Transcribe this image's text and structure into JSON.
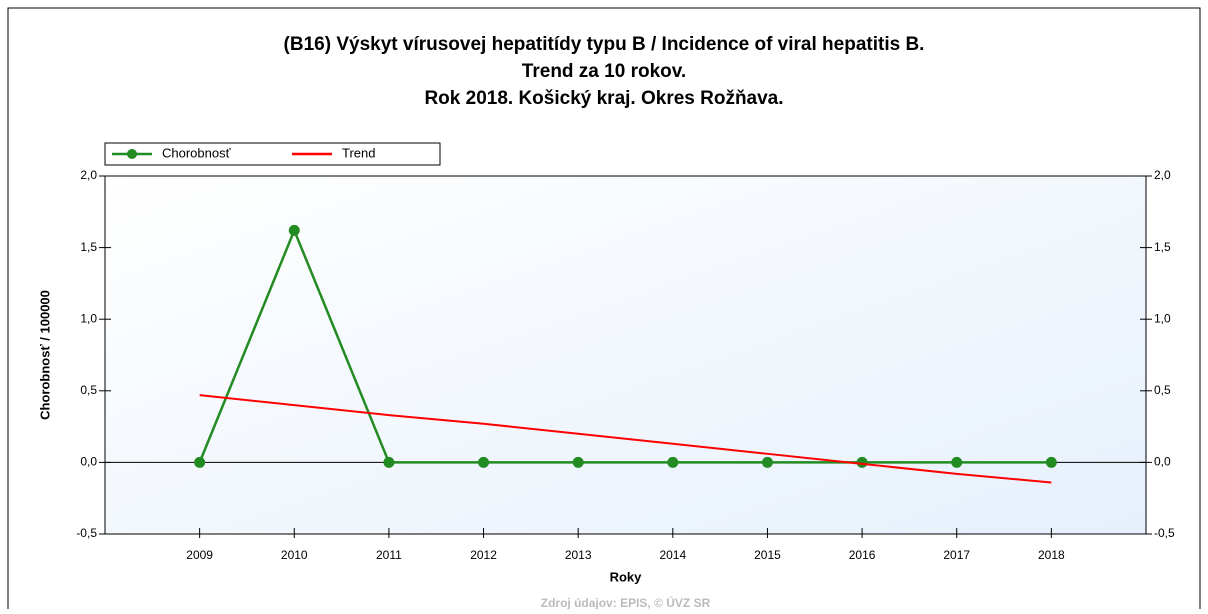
{
  "chart_data": {
    "type": "line",
    "title": [
      "(B16) Výskyt vírusovej hepatitídy typu B / Incidence of viral hepatitis B.",
      "Trend za 10 rokov.",
      "Rok 2018. Košický kraj. Okres Rožňava."
    ],
    "x_label": "Roky",
    "y_label": "Chorobnosť / 100000",
    "source": "Zdroj údajov: EPIS, © ÚVZ SR",
    "x": [
      2009,
      2010,
      2011,
      2012,
      2013,
      2014,
      2015,
      2016,
      2017,
      2018
    ],
    "xlim": [
      2008,
      2019
    ],
    "xticks": [
      2009,
      2010,
      2011,
      2012,
      2013,
      2014,
      2015,
      2016,
      2017,
      2018
    ],
    "ylim": [
      -0.5,
      2
    ],
    "yticks": [
      {
        "value": -0.5,
        "label": "-0,5"
      },
      {
        "value": 0,
        "label": "0,0"
      },
      {
        "value": 0.5,
        "label": "0,5"
      },
      {
        "value": 1,
        "label": "1,0"
      },
      {
        "value": 1.5,
        "label": "1,5"
      },
      {
        "value": 2,
        "label": "2,0"
      }
    ],
    "legend": "top-left",
    "series": [
      {
        "name": "Chorobnosť",
        "color": "#228b22",
        "markers": true,
        "values": [
          0,
          1.62,
          0,
          0,
          0,
          0,
          0,
          0,
          0,
          0
        ]
      },
      {
        "name": "Trend",
        "color": "#ff0000",
        "markers": false,
        "values": [
          0.47,
          0.4,
          0.33,
          0.27,
          0.2,
          0.13,
          0.06,
          -0.01,
          -0.08,
          -0.14
        ]
      }
    ]
  }
}
